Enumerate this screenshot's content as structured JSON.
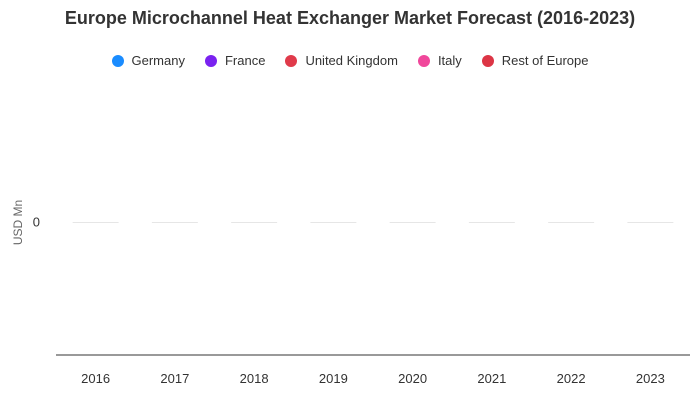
{
  "chart_data": {
    "type": "bar",
    "title": "Europe Microchannel Heat Exchanger Market Forecast (2016-2023)",
    "xlabel": "",
    "ylabel": "USD Mn",
    "categories": [
      "2016",
      "2017",
      "2018",
      "2019",
      "2020",
      "2021",
      "2022",
      "2023"
    ],
    "y_ticks": [
      "0"
    ],
    "ylim": [
      -1,
      1
    ],
    "grid": false,
    "legend_position": "top",
    "series": [
      {
        "name": "Germany",
        "color": "#1a8cff",
        "values": [
          0,
          0,
          0,
          0,
          0,
          0,
          0,
          0
        ]
      },
      {
        "name": "France",
        "color": "#7a22f0",
        "values": [
          0,
          0,
          0,
          0,
          0,
          0,
          0,
          0
        ]
      },
      {
        "name": "United Kingdom",
        "color": "#e03a4a",
        "values": [
          0,
          0,
          0,
          0,
          0,
          0,
          0,
          0
        ]
      },
      {
        "name": "Italy",
        "color": "#f0479b",
        "values": [
          0,
          0,
          0,
          0,
          0,
          0,
          0,
          0
        ]
      },
      {
        "name": "Rest of Europe",
        "color": "#dc3545",
        "values": [
          0,
          0,
          0,
          0,
          0,
          0,
          0,
          0
        ]
      }
    ]
  }
}
